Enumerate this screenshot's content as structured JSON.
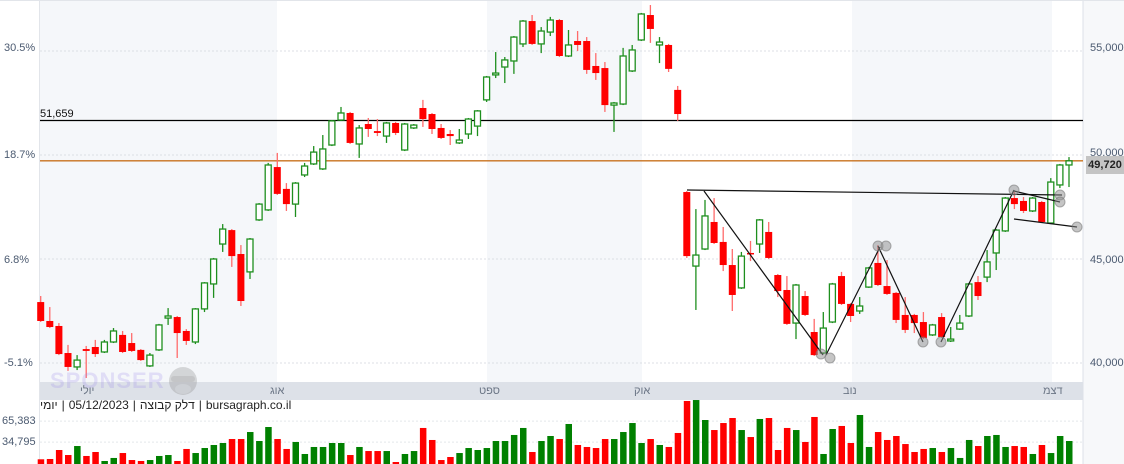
{
  "chart_data": {
    "type": "candlestick",
    "title": "",
    "left_axis_ticks": [
      "30.5%",
      "18.7%",
      "6.8%",
      "-5.1%"
    ],
    "right_axis_ticks": [
      "55,000",
      "50,000",
      "45,000",
      "40,000"
    ],
    "right_axis_values": [
      55000,
      50000,
      45000,
      40000
    ],
    "ylim": [
      38800,
      57400
    ],
    "months": [
      "יולי",
      "אוג",
      "ספט",
      "אוק",
      "נוב",
      "דצמ"
    ],
    "last_price": 49720,
    "last_price_label": "49,720",
    "horizontal_line": {
      "value": 51659,
      "label": "51,659"
    },
    "volume_ticks": [
      "65,383",
      "34,795"
    ],
    "colors": {
      "up": "#1e8f1e",
      "down": "#ff0000",
      "vol_up": "#008000",
      "vol_down": "#ff0000",
      "last_price_line": "#c8721e",
      "band": "#f5f7fa",
      "month_strip": "#dde1e8"
    },
    "ohlc": [
      [
        42930,
        43220,
        41970,
        42020
      ],
      [
        42020,
        42690,
        41680,
        41730
      ],
      [
        41780,
        41920,
        40380,
        40430
      ],
      [
        40480,
        40870,
        39620,
        39810
      ],
      [
        39810,
        40380,
        39660,
        40140
      ],
      [
        40670,
        40820,
        39280,
        40580
      ],
      [
        40770,
        41110,
        40290,
        40430
      ],
      [
        40530,
        41110,
        40480,
        41010
      ],
      [
        41010,
        41680,
        40960,
        41540
      ],
      [
        41350,
        41540,
        40480,
        40530
      ],
      [
        40960,
        41440,
        40530,
        40580
      ],
      [
        40630,
        40670,
        40100,
        40140
      ],
      [
        39860,
        40480,
        39810,
        40380
      ],
      [
        40630,
        41880,
        40580,
        41830
      ],
      [
        42160,
        42640,
        41830,
        42260
      ],
      [
        42210,
        42260,
        40240,
        41440
      ],
      [
        41540,
        41630,
        40870,
        41060
      ],
      [
        41010,
        42640,
        40910,
        42600
      ],
      [
        42600,
        43890,
        42450,
        43850
      ],
      [
        43800,
        45050,
        43130,
        45000
      ],
      [
        45720,
        46680,
        45340,
        46440
      ],
      [
        46390,
        46440,
        44620,
        45140
      ],
      [
        45240,
        45670,
        42740,
        42980
      ],
      [
        44380,
        46010,
        44040,
        45960
      ],
      [
        46880,
        47690,
        46830,
        47640
      ],
      [
        47360,
        49620,
        47310,
        49520
      ],
      [
        49420,
        50100,
        48080,
        48130
      ],
      [
        48370,
        48650,
        47310,
        47640
      ],
      [
        47640,
        48700,
        47020,
        48650
      ],
      [
        49040,
        49620,
        48940,
        49470
      ],
      [
        49570,
        50430,
        49520,
        50140
      ],
      [
        49330,
        50960,
        49280,
        50290
      ],
      [
        50480,
        51680,
        50430,
        51640
      ],
      [
        51680,
        52310,
        51640,
        52020
      ],
      [
        52020,
        52070,
        50530,
        50580
      ],
      [
        50530,
        51440,
        49860,
        51300
      ],
      [
        51490,
        51780,
        50870,
        51250
      ],
      [
        51150,
        51730,
        50910,
        51060
      ],
      [
        50910,
        51590,
        50580,
        51540
      ],
      [
        51540,
        51590,
        50960,
        51060
      ],
      [
        50240,
        51540,
        50190,
        51490
      ],
      [
        51300,
        51490,
        51250,
        51440
      ],
      [
        52260,
        52650,
        51350,
        51730
      ],
      [
        51970,
        52020,
        51010,
        51250
      ],
      [
        51300,
        51490,
        50770,
        50820
      ],
      [
        51010,
        51200,
        50480,
        50910
      ],
      [
        50580,
        51250,
        50530,
        50720
      ],
      [
        51010,
        51780,
        50770,
        51730
      ],
      [
        51390,
        52160,
        50910,
        52120
      ],
      [
        52650,
        53800,
        52550,
        53750
      ],
      [
        53850,
        54950,
        53700,
        53940
      ],
      [
        54230,
        54710,
        53460,
        54570
      ],
      [
        54520,
        55720,
        53900,
        55670
      ],
      [
        55340,
        56490,
        55190,
        56440
      ],
      [
        56440,
        56730,
        55290,
        55340
      ],
      [
        55340,
        56150,
        54900,
        55960
      ],
      [
        55910,
        56640,
        55720,
        56490
      ],
      [
        56490,
        56540,
        54710,
        54760
      ],
      [
        54760,
        56010,
        54710,
        55290
      ],
      [
        55480,
        55960,
        55000,
        55290
      ],
      [
        55480,
        55670,
        53900,
        54090
      ],
      [
        54280,
        54900,
        53610,
        53940
      ],
      [
        54180,
        54470,
        52070,
        52400
      ],
      [
        52400,
        52550,
        51110,
        52500
      ],
      [
        52450,
        55150,
        52400,
        54760
      ],
      [
        54040,
        55290,
        53990,
        55050
      ],
      [
        55530,
        56830,
        55480,
        56780
      ],
      [
        56730,
        57210,
        55390,
        56060
      ],
      [
        55290,
        55670,
        54420,
        55430
      ],
      [
        55290,
        55340,
        53990,
        54140
      ],
      [
        53130,
        53320,
        51640,
        51970
      ],
      [
        48220,
        48270,
        45050,
        45140
      ],
      [
        44660,
        47400,
        42550,
        45190
      ],
      [
        45480,
        47840,
        45430,
        47070
      ],
      [
        46780,
        47930,
        45720,
        45770
      ],
      [
        45820,
        46540,
        44420,
        44710
      ],
      [
        44710,
        45480,
        42500,
        43270
      ],
      [
        43610,
        45340,
        43560,
        45140
      ],
      [
        45290,
        45870,
        44900,
        45240
      ],
      [
        45720,
        46920,
        45290,
        46880
      ],
      [
        46300,
        46780,
        45000,
        45050
      ],
      [
        44230,
        44280,
        43170,
        43460
      ],
      [
        43510,
        44180,
        41830,
        41880
      ],
      [
        41920,
        43800,
        41150,
        43750
      ],
      [
        43220,
        43460,
        42260,
        42310
      ],
      [
        41490,
        42120,
        40340,
        40380
      ],
      [
        40480,
        42450,
        40430,
        41680
      ],
      [
        41970,
        43850,
        41920,
        43800
      ],
      [
        44180,
        44380,
        42790,
        42840
      ],
      [
        42840,
        42880,
        41970,
        42260
      ],
      [
        42500,
        43170,
        42360,
        42740
      ],
      [
        43650,
        44620,
        43610,
        44570
      ],
      [
        44810,
        45670,
        43700,
        43750
      ],
      [
        43700,
        44950,
        43270,
        43320
      ],
      [
        43370,
        43410,
        41920,
        42070
      ],
      [
        42310,
        43170,
        41440,
        41590
      ],
      [
        42310,
        42360,
        41440,
        41920
      ],
      [
        41970,
        42450,
        41150,
        41200
      ],
      [
        41350,
        41880,
        41300,
        41830
      ],
      [
        42210,
        42400,
        41200,
        41250
      ],
      [
        41060,
        41730,
        41010,
        41150
      ],
      [
        41630,
        42310,
        41590,
        41920
      ],
      [
        42260,
        43850,
        42210,
        43800
      ],
      [
        43890,
        44180,
        43030,
        43220
      ],
      [
        44130,
        45430,
        43890,
        44860
      ],
      [
        45290,
        46440,
        44470,
        46390
      ],
      [
        46350,
        47980,
        46300,
        47930
      ],
      [
        47930,
        48220,
        47400,
        47640
      ],
      [
        47790,
        47980,
        47210,
        47310
      ],
      [
        47310,
        47980,
        47260,
        47930
      ],
      [
        47740,
        47790,
        46730,
        46780
      ],
      [
        46730,
        48890,
        46680,
        48700
      ],
      [
        48560,
        49570,
        48410,
        49520
      ],
      [
        49520,
        49900,
        48460,
        49720
      ]
    ],
    "volume": [
      9760,
      10200,
      23300,
      16000,
      29100,
      14600,
      20400,
      7300,
      11700,
      18900,
      8700,
      7300,
      8700,
      14600,
      16000,
      7300,
      24800,
      18900,
      26200,
      30600,
      33500,
      39300,
      39300,
      49500,
      36400,
      56800,
      39300,
      24800,
      35000,
      17500,
      27700,
      27700,
      33500,
      33500,
      16000,
      27700,
      21800,
      21800,
      21800,
      5800,
      17500,
      21800,
      55400,
      37900,
      8700,
      13100,
      18900,
      26200,
      23300,
      26200,
      36400,
      36400,
      45200,
      55400,
      20400,
      36400,
      43700,
      39300,
      61200,
      30600,
      27700,
      26200,
      39300,
      39300,
      49500,
      62600,
      33500,
      39300,
      30600,
      27700,
      48100,
      94700,
      96100,
      67000,
      52400,
      62600,
      69900,
      52400,
      42200,
      68500,
      69900,
      23300,
      55400,
      52400,
      35000,
      71400,
      17500,
      53900,
      58300,
      33500,
      74300,
      27700,
      49500,
      37900,
      43700,
      32000,
      20400,
      24800,
      26200,
      20400,
      26200,
      11700,
      37900,
      29100,
      43700,
      45200,
      27700,
      29100,
      27700,
      17500,
      30600,
      18900,
      43700,
      36400
    ]
  },
  "caption": [
    "יומי",
    "|",
    "05/12/2023",
    "|",
    "דלק קבוצה",
    "|",
    "bursagraph.co.il"
  ],
  "watermark": {
    "text": "SPONSER",
    "icon": "monkey-face-icon"
  }
}
